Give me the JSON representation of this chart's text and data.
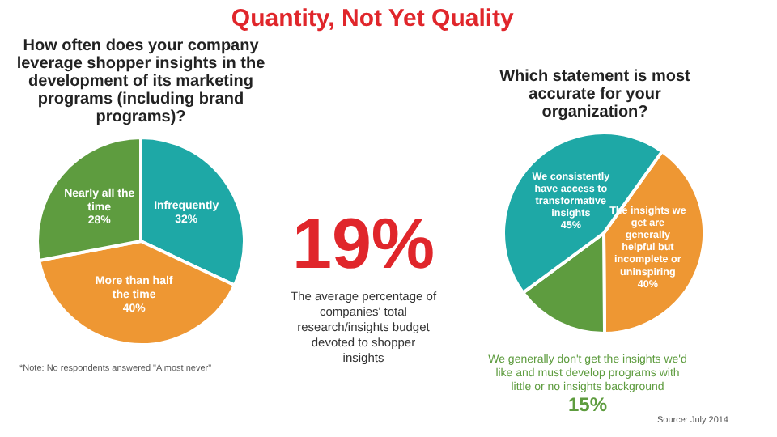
{
  "chart_data": [
    {
      "type": "pie",
      "title": "How often does your company leverage shopper insights in the development of its marketing programs (including brand programs)?",
      "categories": [
        "Infrequently",
        "More than half the time",
        "Nearly all the time"
      ],
      "values": [
        32,
        40,
        28
      ],
      "value_labels": [
        "32%",
        "40%",
        "28%"
      ],
      "colors": [
        "#1ea8a6",
        "#ee9733",
        "#5e9c3f"
      ],
      "annotations": [
        "*Note: No respondents answered \"Almost never\""
      ]
    },
    {
      "type": "other",
      "title": "Quantity, Not Yet Quality",
      "annotations": [
        "19%",
        "The average percentage of companies' total research/insights budget devoted to shopper insights"
      ]
    },
    {
      "type": "pie",
      "title": "Which statement is most accurate for your organization?",
      "categories": [
        "The insights we get are generally helpful but incomplete or uninspiring",
        "We generally don't get the insights we'd like and must develop programs with little or no insights background",
        "We consistently have access to transformative insights"
      ],
      "values": [
        40,
        15,
        45
      ],
      "value_labels": [
        "40%",
        "15%",
        "45%"
      ],
      "colors": [
        "#ee9733",
        "#5e9c3f",
        "#1ea8a6"
      ],
      "annotations": [
        "Source: July 2014"
      ]
    }
  ]
}
